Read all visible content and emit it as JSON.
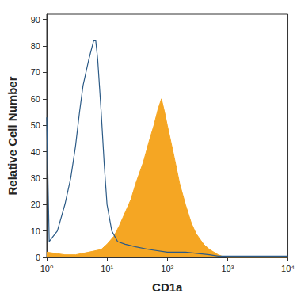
{
  "chart_data": {
    "type": "line",
    "xlabel": "CD1a",
    "ylabel": "Relative Cell Number",
    "log": "x",
    "grid": false,
    "xlim": [
      1,
      10000
    ],
    "xticks": [
      {
        "value": 1,
        "label": "10⁰"
      },
      {
        "value": 10,
        "label": "10¹"
      },
      {
        "value": 100,
        "label": "10²"
      },
      {
        "value": 1000,
        "label": "10³"
      },
      {
        "value": 10000,
        "label": "10⁴"
      }
    ],
    "ylim": [
      0,
      92
    ],
    "yticks": [
      0,
      10,
      20,
      30,
      40,
      50,
      60,
      70,
      80,
      90
    ],
    "series": [
      {
        "type": "area",
        "color": "#f5a623",
        "x": [
          1,
          2,
          3,
          5,
          8,
          10,
          13,
          16,
          20,
          25,
          30,
          40,
          50,
          60,
          70,
          80,
          90,
          100,
          130,
          160,
          200,
          250,
          300,
          400,
          500,
          700,
          800,
          1000,
          10000
        ],
        "values": [
          2,
          1,
          1,
          2,
          3,
          5,
          8,
          12,
          17,
          22,
          28,
          36,
          44,
          50,
          56,
          60,
          55,
          50,
          38,
          28,
          20,
          13,
          9,
          5,
          3,
          1,
          0.5,
          0,
          0
        ]
      },
      {
        "type": "line",
        "color": "#2b5a86",
        "x": [
          1,
          1.1,
          1.5,
          2,
          2.5,
          3,
          3.5,
          4,
          5,
          6,
          6.5,
          7,
          8,
          9,
          10,
          12,
          15,
          20,
          30,
          50,
          100,
          200,
          500,
          700,
          1000,
          10000
        ],
        "values": [
          53,
          6,
          10,
          20,
          30,
          42,
          55,
          65,
          75,
          82,
          82,
          75,
          55,
          35,
          20,
          10,
          6,
          5,
          4,
          3,
          2,
          2,
          1,
          0.5,
          0.5,
          0.5
        ]
      }
    ]
  }
}
